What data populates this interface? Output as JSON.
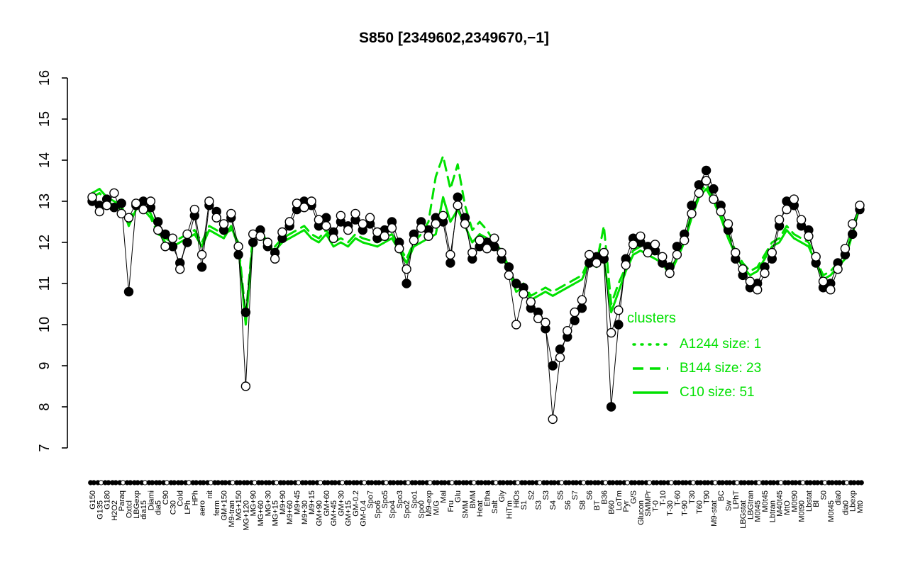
{
  "title": "S850 [2349602,2349670,−1]",
  "colors": {
    "cluster": "#00e100",
    "point_fill": "#000000",
    "point_open": "#ffffff",
    "line": "#000000"
  },
  "legend": {
    "heading": "clusters",
    "items": [
      {
        "label": "A1244 size: 1",
        "style": "dotted"
      },
      {
        "label": "B144 size: 23",
        "style": "dashed"
      },
      {
        "label": "C10 size: 51",
        "style": "solid"
      }
    ]
  },
  "chart_data": {
    "type": "line",
    "title": "S850 [2349602,2349670,−1]",
    "xlabel": "",
    "ylabel": "",
    "ylim": [
      7,
      16
    ],
    "yticks": [
      7,
      8,
      9,
      10,
      11,
      12,
      13,
      14,
      15,
      16
    ],
    "grid": false,
    "legend_position": "inside-right",
    "categories": [
      "G150",
      "G135",
      "G180",
      "H2O2",
      "Paraq",
      "Oxtcl",
      "LBGexp",
      "dia15",
      "Diami",
      "dia5",
      "C90",
      "C30",
      "Cold",
      "LPh",
      "HPh",
      "aero",
      "nit",
      "ferm",
      "GM+150",
      "M9-tran",
      "MG+150",
      "MG+120",
      "MG+90",
      "MG+60",
      "MG+30",
      "MG+15",
      "M9+90",
      "M9+60",
      "M9+45",
      "M9+30",
      "M9+15",
      "GM+90",
      "GM+60",
      "GM+45",
      "GM+30",
      "GM+15",
      "GM-0.2",
      "GM-0.4",
      "Spo7",
      "Spo6",
      "Spo5",
      "Spo4",
      "Spo3",
      "Spo2",
      "Spo1",
      "Spo0",
      "M9-exp",
      "M/G",
      "Mal",
      "Fru",
      "Glu",
      "SMM",
      "BMM",
      "Heat",
      "Etha",
      "Salt",
      "Gly",
      "HiTm",
      "HiOs",
      "S1",
      "S2",
      "S3",
      "S3",
      "S4",
      "S5",
      "S6",
      "S7",
      "S8",
      "S6",
      "BT",
      "B36",
      "B60",
      "LoTm",
      "Pyr",
      "G/S",
      "Glucon",
      "SMMPr",
      "T-0",
      "T-10",
      "T-30",
      "T-60",
      "T-90",
      "T30",
      "T60",
      "T90",
      "M9-stat",
      "BC",
      "Sw",
      "LPhT",
      "LBGstat",
      "LBGtran",
      "M0t45",
      "M0t45",
      "Lbtran",
      "M40t45",
      "MtO",
      "M0t90",
      "M0t90",
      "Lbstat",
      "Bl",
      "S0",
      "M0t45",
      "dia0",
      "dia0",
      "Lbexp",
      "Mt0"
    ],
    "series": [
      {
        "name": "probe 2349602",
        "role": "gene-probe",
        "marker": "filled-circle",
        "color": "#000000",
        "values": [
          13.0,
          12.9,
          13.05,
          12.85,
          12.95,
          10.8,
          12.9,
          13.0,
          12.85,
          12.5,
          12.2,
          11.9,
          11.5,
          12.0,
          12.65,
          11.4,
          12.9,
          12.75,
          12.3,
          12.6,
          11.7,
          10.3,
          12.0,
          12.3,
          11.9,
          11.75,
          12.1,
          12.4,
          12.8,
          13.0,
          12.9,
          12.4,
          12.6,
          12.25,
          12.5,
          12.4,
          12.55,
          12.3,
          12.45,
          12.1,
          12.3,
          12.5,
          12.0,
          11.0,
          12.2,
          12.5,
          12.3,
          12.6,
          12.5,
          11.5,
          13.1,
          12.6,
          11.6,
          11.9,
          12.0,
          11.9,
          11.6,
          11.4,
          11.0,
          10.9,
          10.4,
          10.3,
          9.9,
          9.0,
          9.4,
          9.7,
          10.1,
          10.4,
          11.5,
          11.65,
          11.6,
          8.0,
          10.0,
          11.6,
          12.1,
          12.0,
          11.9,
          11.8,
          11.5,
          11.4,
          11.9,
          12.2,
          12.9,
          13.4,
          13.75,
          13.3,
          12.9,
          12.3,
          11.6,
          11.2,
          10.9,
          11.0,
          11.4,
          11.6,
          12.4,
          13.0,
          12.9,
          12.4,
          12.3,
          11.5,
          10.9,
          11.0,
          11.5,
          11.7,
          12.2,
          12.8
        ]
      },
      {
        "name": "probe 2349670",
        "role": "gene-probe",
        "marker": "open-circle",
        "color": "#000000",
        "values": [
          13.1,
          12.75,
          12.9,
          13.2,
          12.7,
          12.6,
          12.95,
          12.8,
          13.0,
          12.3,
          11.9,
          12.1,
          11.35,
          12.2,
          12.8,
          11.7,
          13.0,
          12.6,
          12.45,
          12.7,
          11.9,
          8.5,
          12.2,
          12.15,
          12.0,
          11.6,
          12.25,
          12.5,
          12.95,
          12.85,
          13.0,
          12.55,
          12.4,
          12.1,
          12.65,
          12.3,
          12.7,
          12.45,
          12.6,
          12.25,
          12.15,
          12.35,
          11.85,
          11.35,
          12.05,
          12.35,
          12.15,
          12.45,
          12.65,
          11.7,
          12.9,
          12.45,
          11.75,
          12.05,
          11.85,
          12.1,
          11.75,
          11.2,
          10.0,
          10.75,
          10.55,
          10.15,
          10.05,
          7.7,
          9.2,
          9.85,
          10.3,
          10.6,
          11.7,
          11.5,
          11.75,
          9.8,
          10.35,
          11.45,
          11.95,
          12.15,
          11.75,
          11.95,
          11.65,
          11.25,
          11.7,
          12.05,
          12.7,
          13.2,
          13.5,
          13.05,
          12.75,
          12.45,
          11.75,
          11.35,
          11.05,
          10.85,
          11.25,
          11.75,
          12.55,
          12.8,
          13.05,
          12.55,
          12.15,
          11.65,
          11.05,
          10.85,
          11.35,
          11.85,
          12.45,
          12.9
        ]
      },
      {
        "name": "A1244",
        "role": "cluster",
        "size": 1,
        "line": "dotted",
        "color": "#00e100",
        "values": [
          13.2,
          13.3,
          13.1,
          13.0,
          12.9,
          12.4,
          12.8,
          12.9,
          12.7,
          12.3,
          12.0,
          11.9,
          12.0,
          12.1,
          12.2,
          11.9,
          12.3,
          12.2,
          12.1,
          12.4,
          11.9,
          10.0,
          12.1,
          12.2,
          11.9,
          11.8,
          12.0,
          12.1,
          12.2,
          12.3,
          12.1,
          12.0,
          12.2,
          11.9,
          12.0,
          11.9,
          12.1,
          12.0,
          11.95,
          11.9,
          12.0,
          12.1,
          11.8,
          11.5,
          11.9,
          12.0,
          12.1,
          12.2,
          13.1,
          12.5,
          12.8,
          12.4,
          12.0,
          12.2,
          12.1,
          11.9,
          11.7,
          11.3,
          10.8,
          10.9,
          10.6,
          10.7,
          10.8,
          10.7,
          10.8,
          10.9,
          11.0,
          11.1,
          11.5,
          11.4,
          11.6,
          10.3,
          10.8,
          11.3,
          11.7,
          11.8,
          11.7,
          11.6,
          11.5,
          11.2,
          11.6,
          12.0,
          12.6,
          13.1,
          13.3,
          13.0,
          12.6,
          12.1,
          11.7,
          11.4,
          11.2,
          11.3,
          11.6,
          11.9,
          12.0,
          12.3,
          12.1,
          12.0,
          11.9,
          11.5,
          11.1,
          11.2,
          11.4,
          11.6,
          12.2,
          12.9
        ]
      },
      {
        "name": "B144",
        "role": "cluster",
        "size": 23,
        "line": "dashed",
        "color": "#00e100",
        "values": [
          13.1,
          13.2,
          13.0,
          12.9,
          12.8,
          12.5,
          12.9,
          12.8,
          12.6,
          12.2,
          12.1,
          12.0,
          12.1,
          12.2,
          12.3,
          12.0,
          12.4,
          12.3,
          12.2,
          12.3,
          12.0,
          10.2,
          12.2,
          12.3,
          12.0,
          11.9,
          12.1,
          12.2,
          12.3,
          12.4,
          12.2,
          12.1,
          12.3,
          12.0,
          12.1,
          12.0,
          12.2,
          12.1,
          12.05,
          12.0,
          12.1,
          12.2,
          11.9,
          11.6,
          12.0,
          12.2,
          12.5,
          13.6,
          14.1,
          13.3,
          13.9,
          12.9,
          12.3,
          12.5,
          12.3,
          12.0,
          11.8,
          11.4,
          10.9,
          11.0,
          10.7,
          10.8,
          10.9,
          10.8,
          10.9,
          11.0,
          11.1,
          11.2,
          11.6,
          11.5,
          12.4,
          10.5,
          11.0,
          11.4,
          11.8,
          11.9,
          11.8,
          11.7,
          11.6,
          11.3,
          11.7,
          12.1,
          12.7,
          13.2,
          13.4,
          13.1,
          12.7,
          12.2,
          11.8,
          11.5,
          11.3,
          11.4,
          11.7,
          12.0,
          12.1,
          12.4,
          12.2,
          12.1,
          12.0,
          11.6,
          11.2,
          11.3,
          11.5,
          11.7,
          12.3,
          13.0
        ]
      },
      {
        "name": "C10",
        "role": "cluster",
        "size": 51,
        "line": "solid",
        "color": "#00e100",
        "values": [
          13.2,
          13.3,
          13.1,
          13.0,
          12.9,
          12.4,
          12.8,
          12.9,
          12.7,
          12.3,
          12.0,
          11.9,
          12.0,
          12.1,
          12.2,
          11.9,
          12.3,
          12.2,
          12.1,
          12.4,
          11.9,
          10.0,
          12.1,
          12.2,
          11.9,
          11.8,
          12.0,
          12.1,
          12.2,
          12.3,
          12.1,
          12.0,
          12.2,
          11.9,
          12.0,
          11.9,
          12.1,
          12.0,
          11.95,
          11.9,
          12.0,
          12.1,
          11.8,
          11.5,
          11.9,
          12.0,
          12.1,
          12.2,
          13.1,
          12.5,
          12.8,
          12.4,
          12.0,
          12.2,
          12.1,
          11.9,
          11.7,
          11.3,
          10.8,
          10.9,
          10.6,
          10.7,
          10.8,
          10.7,
          10.8,
          10.9,
          11.0,
          11.1,
          11.5,
          11.4,
          11.6,
          10.3,
          10.8,
          11.3,
          11.7,
          11.8,
          11.7,
          11.6,
          11.5,
          11.2,
          11.6,
          12.0,
          12.6,
          13.1,
          13.3,
          13.0,
          12.6,
          12.1,
          11.7,
          11.4,
          11.2,
          11.3,
          11.6,
          11.9,
          12.0,
          12.3,
          12.1,
          12.0,
          11.9,
          11.5,
          11.1,
          11.2,
          11.4,
          11.6,
          12.2,
          12.9
        ]
      }
    ]
  }
}
